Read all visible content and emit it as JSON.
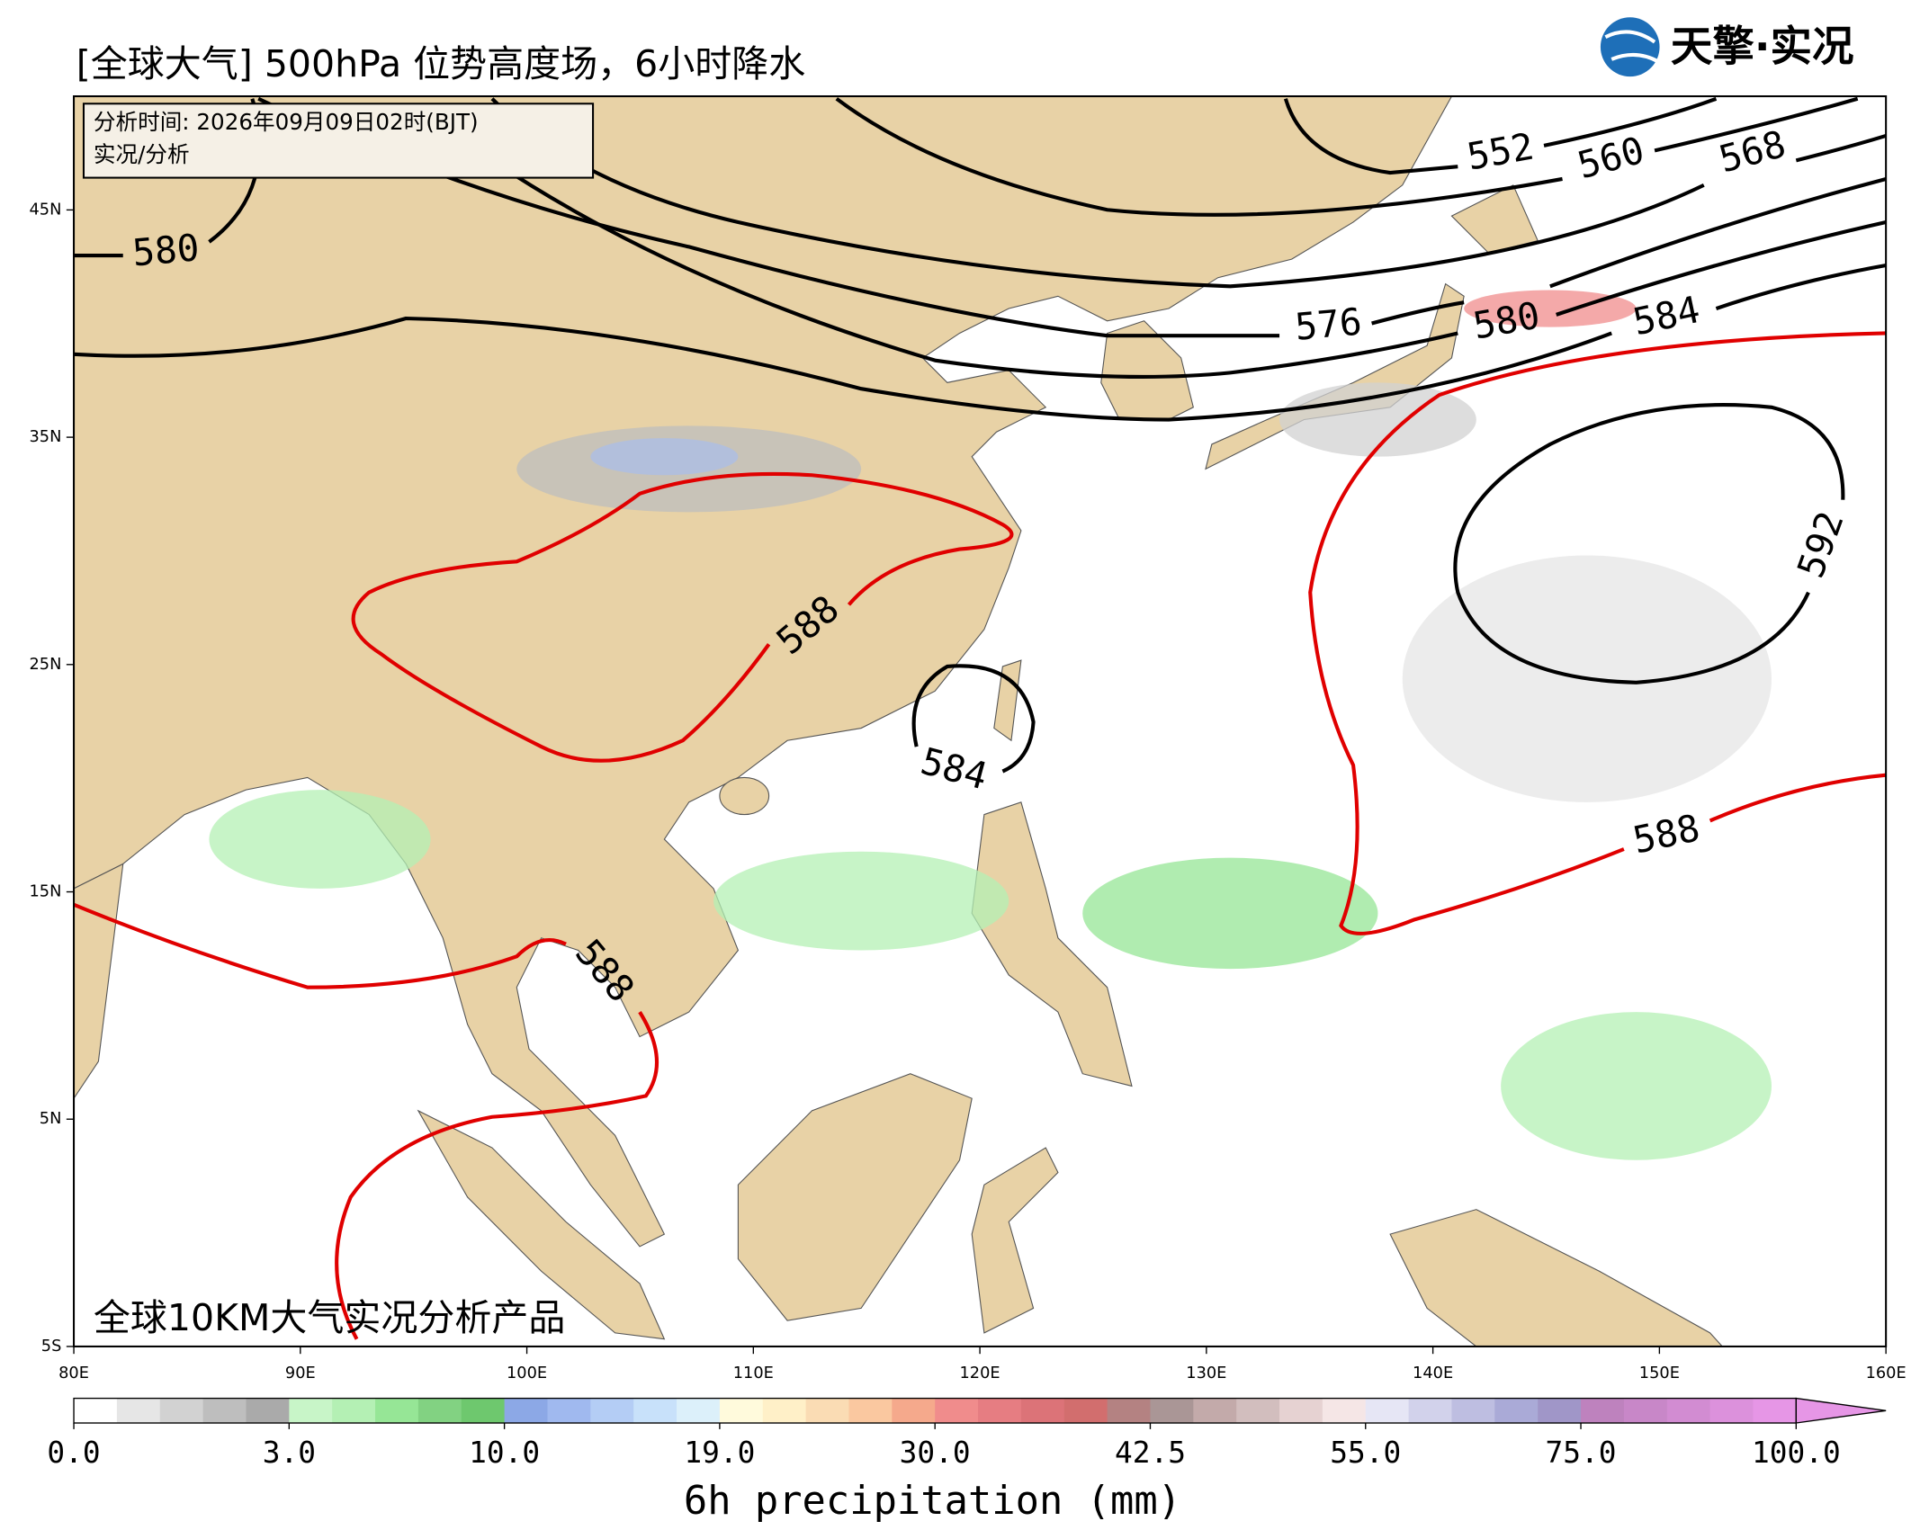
{
  "header": {
    "title": "[全球大气] 500hPa 位势高度场，6小时降水",
    "logo": "天擎·实况"
  },
  "info_box": {
    "time": "分析时间: 2026年09月09日02时(BJT)",
    "kind": "实况/分析"
  },
  "footer_label": "全球10KM大气实况分析产品",
  "map": {
    "lon_ticks": [
      {
        "value": 80,
        "label": "80E"
      },
      {
        "value": 90,
        "label": "90E"
      },
      {
        "value": 100,
        "label": "100E"
      },
      {
        "value": 110,
        "label": "110E"
      },
      {
        "value": 120,
        "label": "120E"
      },
      {
        "value": 130,
        "label": "130E"
      },
      {
        "value": 140,
        "label": "140E"
      },
      {
        "value": 150,
        "label": "150E"
      },
      {
        "value": 160,
        "label": "160E"
      }
    ],
    "lat_ticks": [
      {
        "value": 45,
        "label": "45N"
      },
      {
        "value": 35,
        "label": "35N"
      },
      {
        "value": 25,
        "label": "25N"
      },
      {
        "value": 15,
        "label": "15N"
      },
      {
        "value": 5,
        "label": "5N"
      },
      {
        "value": -5,
        "label": "5S"
      }
    ],
    "lon_range": [
      80,
      160
    ],
    "lat_range": [
      -5,
      50
    ]
  },
  "contours": [
    {
      "level": 580
    },
    {
      "level": 552
    },
    {
      "level": 560
    },
    {
      "level": 568
    },
    {
      "level": 576
    },
    {
      "level": 580
    },
    {
      "level": 584
    },
    {
      "level": 588
    },
    {
      "level": 584
    },
    {
      "level": 588
    },
    {
      "level": 592
    },
    {
      "level": 588
    }
  ],
  "colorbar": {
    "title": "6h precipitation (mm)",
    "ticks": [
      {
        "value": 0,
        "label": "0.0"
      },
      {
        "value": 3,
        "label": "3.0"
      },
      {
        "value": 10,
        "label": "10.0"
      },
      {
        "value": 19,
        "label": "19.0"
      },
      {
        "value": 30,
        "label": "30.0"
      },
      {
        "value": 42.5,
        "label": "42.5"
      },
      {
        "value": 55,
        "label": "55.0"
      },
      {
        "value": 75,
        "label": "75.0"
      },
      {
        "value": 100,
        "label": "100.0"
      }
    ],
    "colors": [
      "#ffffff",
      "#e6e6e6",
      "#d2d2d2",
      "#bebebe",
      "#aaaaaa",
      "#c8f5c8",
      "#b4f0b4",
      "#96e696",
      "#82d282",
      "#6ec86e",
      "#8ca8e6",
      "#a0b9ef",
      "#b4cdf5",
      "#c8e1fa",
      "#dcf0fa",
      "#fffadc",
      "#fff0c8",
      "#fadcb4",
      "#fac8a0",
      "#f5a98c",
      "#f08c8c",
      "#e67d82",
      "#dc7378",
      "#d26e6e",
      "#b48282",
      "#aa9696",
      "#c3aaaa",
      "#d2bebe",
      "#e6d2d2",
      "#f5e6e6",
      "#e6e6f5",
      "#d2d2eb",
      "#bebee1",
      "#aaaad7",
      "#a096c8",
      "#be82be",
      "#c887c8",
      "#d28cd2",
      "#dc91dc",
      "#e696e6"
    ]
  }
}
